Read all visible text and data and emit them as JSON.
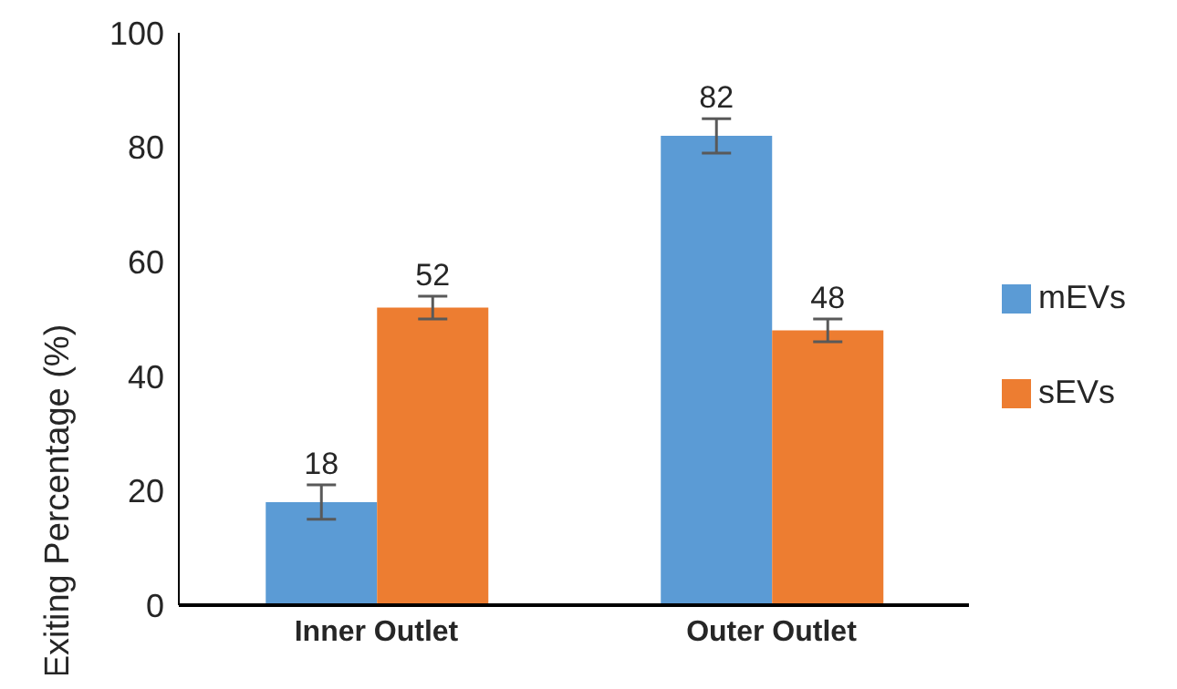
{
  "chart_data": {
    "type": "bar",
    "ylabel": "Exiting Percentage (%)",
    "categories": [
      "Inner Outlet",
      "Outer Outlet"
    ],
    "series": [
      {
        "name": "mEVs",
        "color": "#5b9bd5",
        "values": [
          18,
          82
        ],
        "errors": [
          3,
          3
        ]
      },
      {
        "name": "sEVs",
        "color": "#ed7d31",
        "values": [
          52,
          48
        ],
        "errors": [
          2,
          2
        ]
      }
    ],
    "ylim": [
      0,
      100
    ],
    "yticks": [
      0,
      20,
      40,
      60,
      80,
      100
    ],
    "grid": false,
    "legend": "right",
    "data_labels": true
  }
}
